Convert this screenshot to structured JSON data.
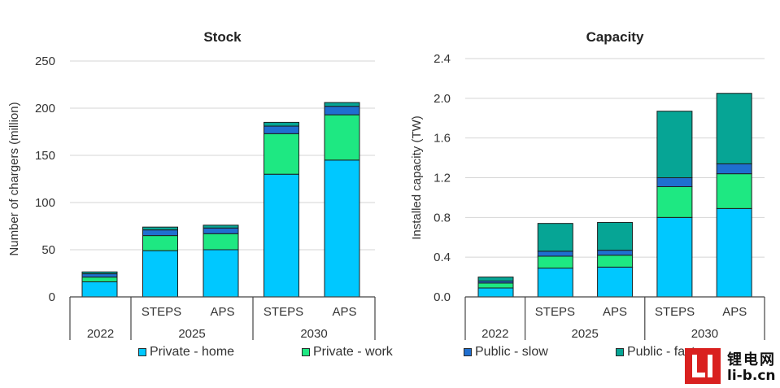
{
  "legend": [
    {
      "name": "Private - home",
      "color": "#00c8ff"
    },
    {
      "name": "Private - work",
      "color": "#1ee882"
    },
    {
      "name": "Public - slow",
      "color": "#1f6fd0"
    },
    {
      "name": "Public - fast",
      "color": "#06a595"
    }
  ],
  "watermark": {
    "cn": "锂电网",
    "url": "li-b.cn"
  },
  "chart_data": [
    {
      "type": "bar",
      "stacked": true,
      "title": "Stock",
      "ylabel": "Number of chargers (million)",
      "ylim": [
        0,
        250
      ],
      "yticks": [
        "0",
        "50",
        "100",
        "150",
        "200",
        "250"
      ],
      "categories": [
        "2022",
        "STEPS",
        "APS",
        "STEPS",
        "APS"
      ],
      "groups": [
        {
          "label": "2022",
          "span": 1
        },
        {
          "label": "2025",
          "span": 2
        },
        {
          "label": "2030",
          "span": 2
        }
      ],
      "series": [
        {
          "name": "Private - home",
          "values": [
            16,
            49,
            50,
            130,
            145
          ]
        },
        {
          "name": "Private - work",
          "values": [
            5,
            16,
            17,
            43,
            48
          ]
        },
        {
          "name": "Public - slow",
          "values": [
            3.5,
            6,
            6,
            8,
            9
          ]
        },
        {
          "name": "Public - fast",
          "values": [
            2,
            3,
            3,
            4,
            4
          ]
        }
      ],
      "grid": true
    },
    {
      "type": "bar",
      "stacked": true,
      "title": "Capacity",
      "ylabel": "Installed capacity (TW)",
      "ylim": [
        0,
        2.4
      ],
      "yticks": [
        "0.0",
        "0.4",
        "0.8",
        "1.2",
        "1.6",
        "2.0",
        "2.4"
      ],
      "categories": [
        "2022",
        "STEPS",
        "APS",
        "STEPS",
        "APS"
      ],
      "groups": [
        {
          "label": "2022",
          "span": 1
        },
        {
          "label": "2025",
          "span": 2
        },
        {
          "label": "2030",
          "span": 2
        }
      ],
      "series": [
        {
          "name": "Private - home",
          "values": [
            0.09,
            0.29,
            0.3,
            0.8,
            0.89
          ]
        },
        {
          "name": "Private - work",
          "values": [
            0.05,
            0.12,
            0.12,
            0.31,
            0.35
          ]
        },
        {
          "name": "Public - slow",
          "values": [
            0.02,
            0.05,
            0.05,
            0.09,
            0.1
          ]
        },
        {
          "name": "Public - fast",
          "values": [
            0.04,
            0.28,
            0.28,
            0.67,
            0.71
          ]
        }
      ],
      "grid": true
    }
  ]
}
